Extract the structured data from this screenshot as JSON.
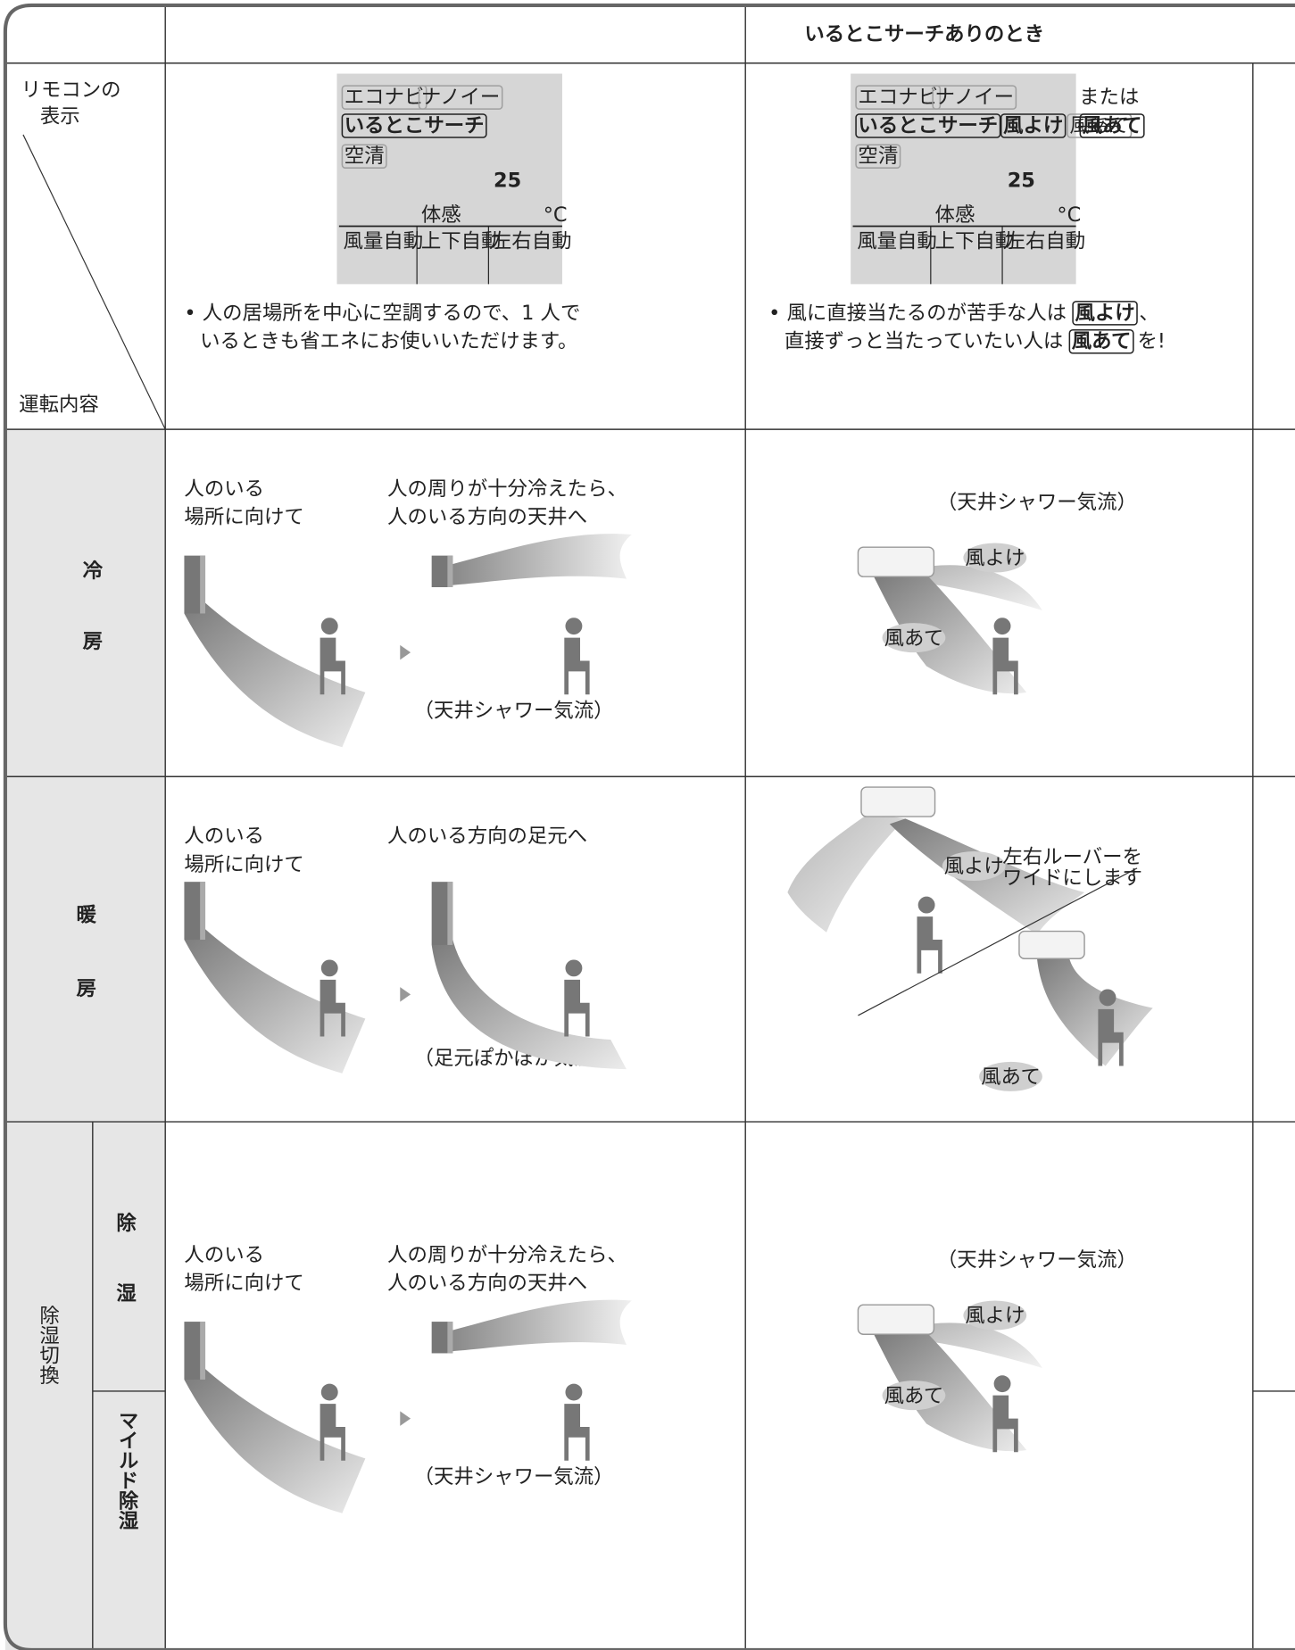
{
  "header": {
    "title": "いるとこサーチありのとき"
  },
  "corner": {
    "display_label": [
      "リモコンの",
      "表示"
    ],
    "operation_label": "運転内容"
  },
  "remote_display": {
    "standard": {
      "icons": [
        "エコナビ",
        "ナノイー",
        "いるとこサーチ",
        "空清"
      ],
      "feel": "体感",
      "temperature": "25",
      "unit": "°C",
      "modes": [
        "風量自動",
        "上下自動",
        "左右自動"
      ],
      "description": [
        "• 人の居場所を中心に空調するので、1 人で",
        "いるときも省エネにお使いいただけます。"
      ]
    },
    "wind": {
      "icons": [
        "エコナビ",
        "ナノイー",
        "いるとこサーチ",
        "空清"
      ],
      "avoid": "風よけ",
      "direct": "風あて",
      "or": "または",
      "feel": "体感",
      "temperature": "25",
      "unit": "°C",
      "modes": [
        "風量自動",
        "上下自動",
        "左右自動"
      ],
      "description": {
        "line1": [
          "• 風に直接当たるのが苦手な人は",
          "風よけ",
          "、"
        ],
        "line2": [
          "直接ずっと当たっていたい人は",
          "風あて",
          "を!"
        ]
      }
    }
  },
  "rows": [
    {
      "label": [
        "冷",
        "房"
      ],
      "standard": {
        "initial": [
          "人のいる",
          "場所に向けて"
        ],
        "after": [
          "人の周りが十分冷えたら、",
          "人のいる方向の天井へ"
        ],
        "airflow": "（天井シャワー気流）"
      },
      "wind": {
        "airflow": "（天井シャワー気流）",
        "avoid": "風よけ",
        "direct": "風あて"
      }
    },
    {
      "label": [
        "暖",
        "房"
      ],
      "standard": {
        "initial": [
          "人のいる",
          "場所に向けて"
        ],
        "after": [
          "人のいる方向の足元へ"
        ],
        "airflow": "（足元ぽかぽか気流）"
      },
      "wind": {
        "avoid": "風よけ",
        "note": [
          "左右ルーバーを",
          "ワイドにします"
        ],
        "direct": "風あて"
      }
    },
    {
      "group": "除湿切換",
      "label": [
        "除",
        "湿"
      ],
      "sub_label": "マイルド除湿",
      "standard": {
        "initial": [
          "人のいる",
          "場所に向けて"
        ],
        "after": [
          "人の周りが十分冷えたら、",
          "人のいる方向の天井へ"
        ],
        "airflow": "（天井シャワー気流）"
      },
      "wind": {
        "airflow": "（天井シャワー気流）",
        "avoid": "風よけ",
        "direct": "風あて"
      }
    }
  ]
}
